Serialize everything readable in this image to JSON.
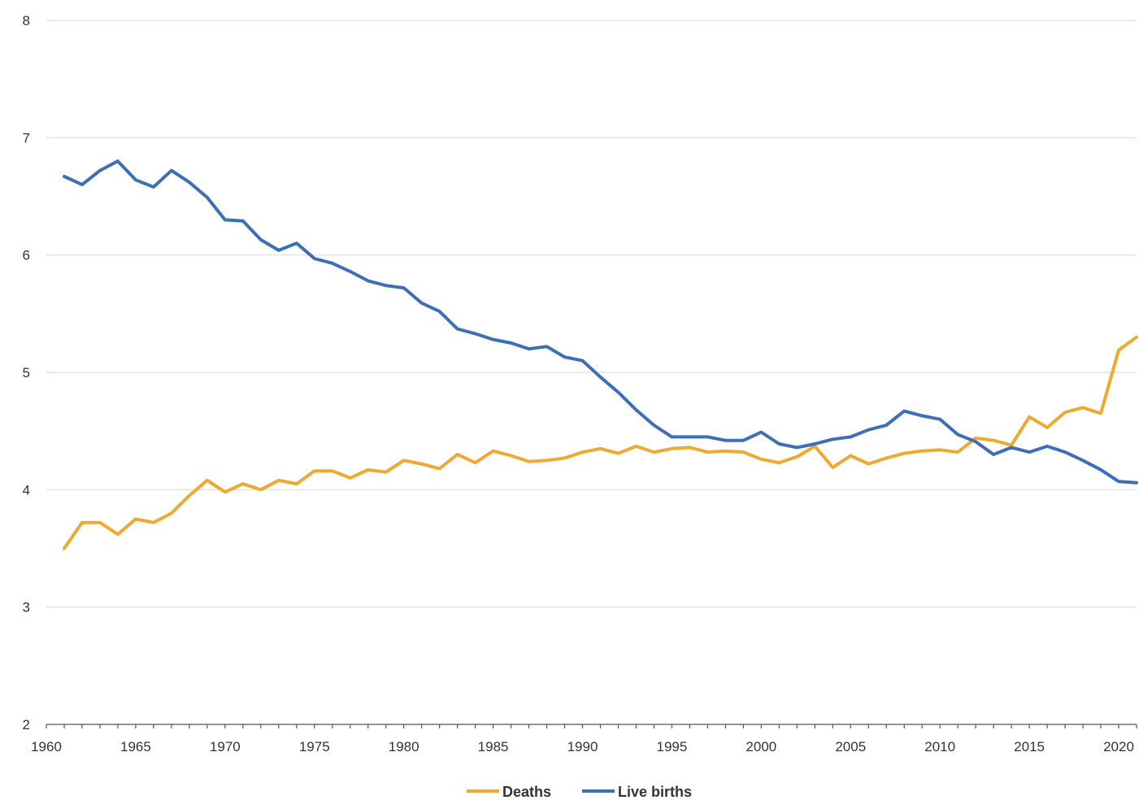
{
  "chart_data": {
    "type": "line",
    "title": "",
    "xlabel": "",
    "ylabel": "",
    "xlim": [
      1960,
      2021
    ],
    "ylim": [
      2,
      8
    ],
    "yticks": [
      2,
      3,
      4,
      5,
      6,
      7,
      8
    ],
    "xticks": [
      1960,
      1965,
      1970,
      1975,
      1980,
      1985,
      1990,
      1995,
      2000,
      2005,
      2010,
      2015,
      2020
    ],
    "grid": true,
    "legend_position": "bottom",
    "x": [
      1961,
      1962,
      1963,
      1964,
      1965,
      1966,
      1967,
      1968,
      1969,
      1970,
      1971,
      1972,
      1973,
      1974,
      1975,
      1976,
      1977,
      1978,
      1979,
      1980,
      1981,
      1982,
      1983,
      1984,
      1985,
      1986,
      1987,
      1988,
      1989,
      1990,
      1991,
      1992,
      1993,
      1994,
      1995,
      1996,
      1997,
      1998,
      1999,
      2000,
      2001,
      2002,
      2003,
      2004,
      2005,
      2006,
      2007,
      2008,
      2009,
      2010,
      2011,
      2012,
      2013,
      2014,
      2015,
      2016,
      2017,
      2018,
      2019,
      2020,
      2021
    ],
    "series": [
      {
        "name": "Deaths",
        "color": "#F0A830",
        "values": [
          3.5,
          3.72,
          3.72,
          3.62,
          3.75,
          3.72,
          3.8,
          3.95,
          4.08,
          3.98,
          4.05,
          4.0,
          4.08,
          4.05,
          4.16,
          4.16,
          4.1,
          4.17,
          4.15,
          4.25,
          4.22,
          4.18,
          4.3,
          4.23,
          4.33,
          4.29,
          4.24,
          4.25,
          4.27,
          4.32,
          4.35,
          4.31,
          4.37,
          4.32,
          4.35,
          4.36,
          4.32,
          4.33,
          4.32,
          4.26,
          4.23,
          4.28,
          4.37,
          4.19,
          4.29,
          4.22,
          4.27,
          4.31,
          4.33,
          4.34,
          4.32,
          4.44,
          4.42,
          4.38,
          4.62,
          4.53,
          4.66,
          4.7,
          4.65,
          5.19,
          5.3
        ]
      },
      {
        "name": "Live births",
        "color": "#3D6FB7",
        "values": [
          6.67,
          6.6,
          6.72,
          6.8,
          6.64,
          6.58,
          6.72,
          6.62,
          6.49,
          6.3,
          6.29,
          6.13,
          6.04,
          6.1,
          5.97,
          5.93,
          5.86,
          5.78,
          5.74,
          5.72,
          5.59,
          5.52,
          5.37,
          5.33,
          5.28,
          5.25,
          5.2,
          5.22,
          5.13,
          5.1,
          4.96,
          4.83,
          4.68,
          4.55,
          4.45,
          4.45,
          4.45,
          4.42,
          4.42,
          4.49,
          4.39,
          4.36,
          4.39,
          4.43,
          4.45,
          4.51,
          4.55,
          4.67,
          4.63,
          4.6,
          4.47,
          4.41,
          4.3,
          4.36,
          4.32,
          4.37,
          4.32,
          4.25,
          4.17,
          4.07,
          4.06
        ]
      }
    ]
  }
}
